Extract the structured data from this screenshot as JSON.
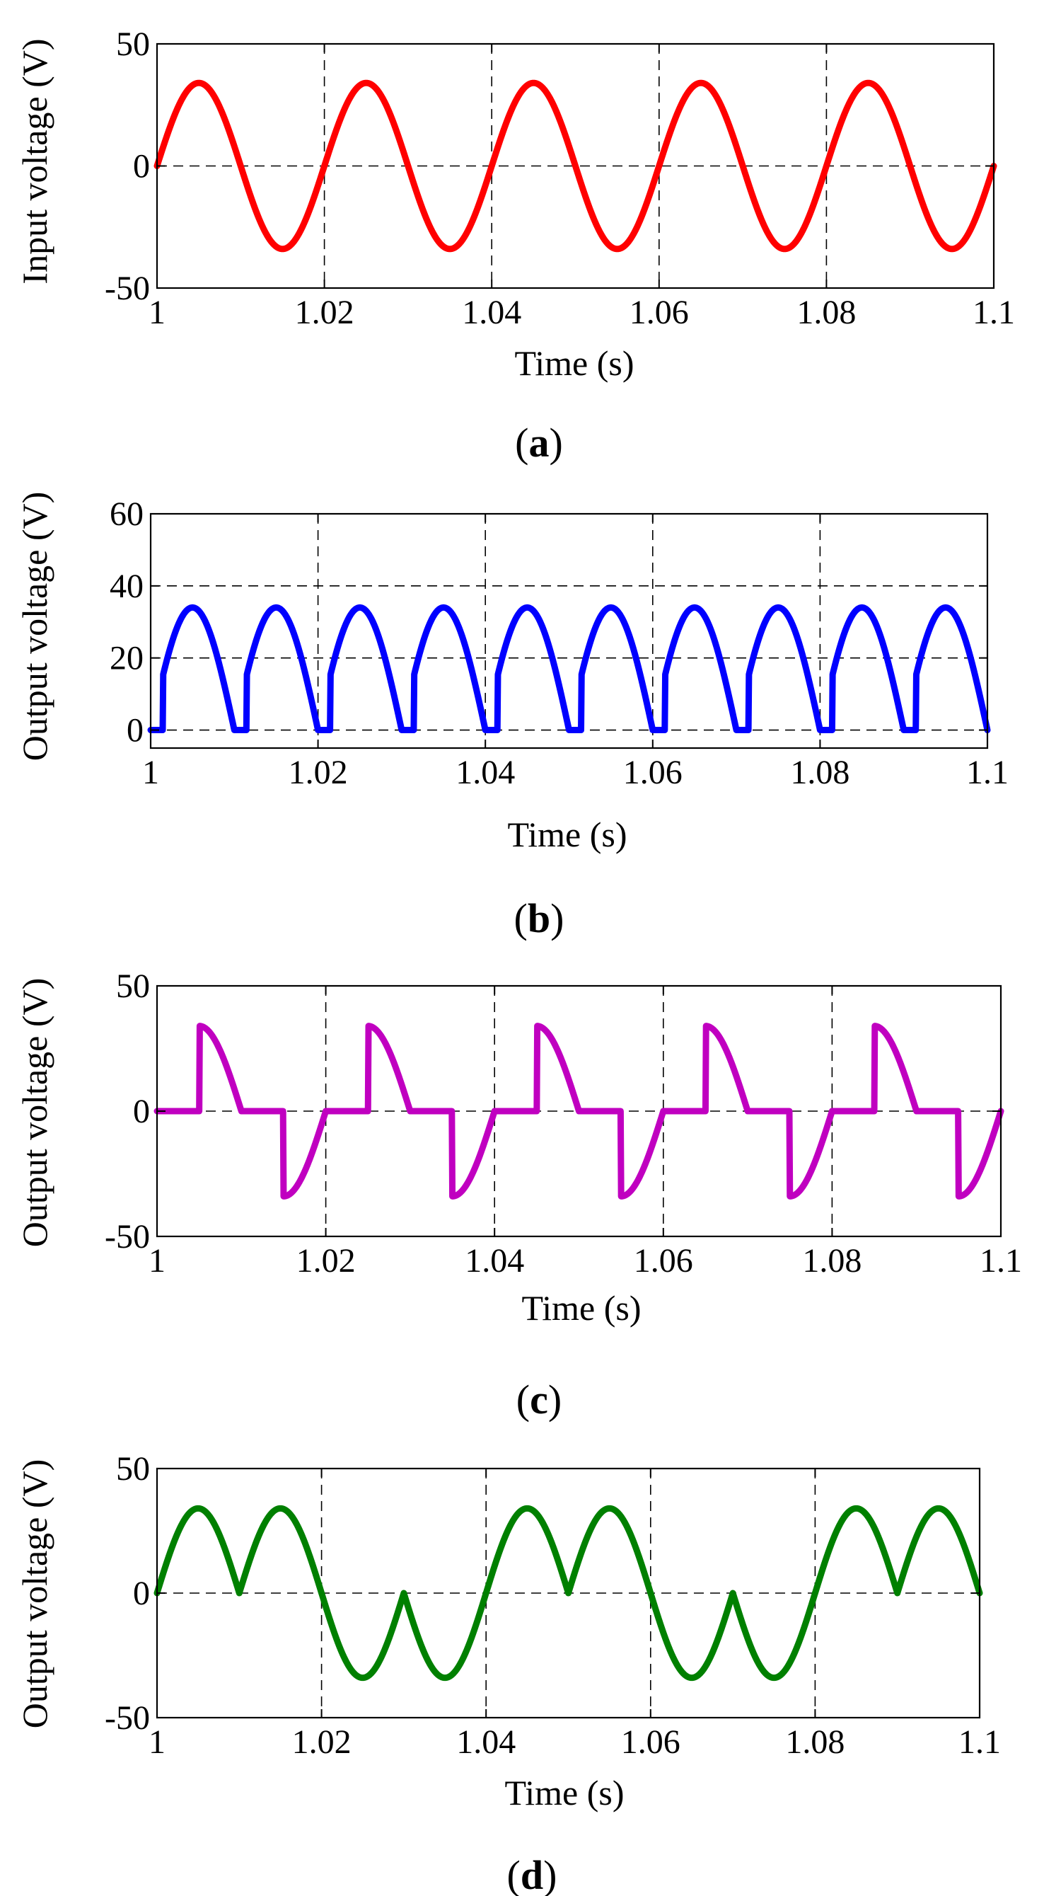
{
  "figure": {
    "panels": [
      {
        "caption_letter": "a",
        "x_label": "Time (s)",
        "y_label": "Input voltage (V)"
      },
      {
        "caption_letter": "b",
        "x_label": "Time (s)",
        "y_label": "Output voltage (V)"
      },
      {
        "caption_letter": "c",
        "x_label": "Time (s)",
        "y_label": "Output voltage (V)"
      },
      {
        "caption_letter": "d",
        "x_label": "Time (s)",
        "y_label": "Output voltage (V)"
      }
    ],
    "caption_open": "(",
    "caption_close": ")"
  },
  "chart_data": [
    {
      "id": "a",
      "type": "line",
      "title": "",
      "xlabel": "Time (s)",
      "ylabel": "Input voltage (V)",
      "xlim": [
        1,
        1.1
      ],
      "ylim": [
        -50,
        50
      ],
      "xticks": [
        1,
        1.02,
        1.04,
        1.06,
        1.08,
        1.1
      ],
      "xtick_labels": [
        "1",
        "1.02",
        "1.04",
        "1.06",
        "1.08",
        "1.1"
      ],
      "yticks": [
        -50,
        0,
        50
      ],
      "ytick_labels": [
        "-50",
        "0",
        "50"
      ],
      "grid": true,
      "series": [
        {
          "name": "Input voltage",
          "color": "#ff0000",
          "waveform": "sine",
          "amplitude": 34,
          "frequency_hz": 50,
          "x": [
            1,
            1.005,
            1.01,
            1.015,
            1.02,
            1.025,
            1.03,
            1.035,
            1.04,
            1.045,
            1.05,
            1.055,
            1.06,
            1.065,
            1.07,
            1.075,
            1.08,
            1.085,
            1.09,
            1.095,
            1.1
          ],
          "y": [
            0,
            34,
            0,
            -34,
            0,
            34,
            0,
            -34,
            0,
            34,
            0,
            -34,
            0,
            34,
            0,
            -34,
            0,
            34,
            0,
            -34,
            0
          ]
        }
      ]
    },
    {
      "id": "b",
      "type": "line",
      "title": "",
      "xlabel": "Time (s)",
      "ylabel": "Output voltage (V)",
      "xlim": [
        1,
        1.1
      ],
      "ylim": [
        -5,
        60
      ],
      "xticks": [
        1,
        1.02,
        1.04,
        1.06,
        1.08,
        1.1
      ],
      "xtick_labels": [
        "1",
        "1.02",
        "1.04",
        "1.06",
        "1.08",
        "1.1"
      ],
      "yticks": [
        0,
        20,
        40,
        60
      ],
      "ytick_labels": [
        "0",
        "20",
        "40",
        "60"
      ],
      "grid": true,
      "series": [
        {
          "name": "Output voltage",
          "color": "#0000ff",
          "waveform": "phase-controlled full-wave rectified",
          "amplitude": 34,
          "frequency_hz": 50,
          "firing_delay_s": 0.0015,
          "x": [
            1,
            1.0015,
            1.005,
            1.01,
            1.0115,
            1.015,
            1.02,
            1.0215,
            1.025,
            1.03
          ],
          "y": [
            0,
            16,
            34,
            0,
            16,
            34,
            0,
            16,
            34,
            0
          ]
        }
      ]
    },
    {
      "id": "c",
      "type": "line",
      "title": "",
      "xlabel": "Time (s)",
      "ylabel": "Output voltage (V)",
      "xlim": [
        1,
        1.1
      ],
      "ylim": [
        -50,
        50
      ],
      "xticks": [
        1,
        1.02,
        1.04,
        1.06,
        1.08,
        1.1
      ],
      "xtick_labels": [
        "1",
        "1.02",
        "1.04",
        "1.06",
        "1.08",
        "1.1"
      ],
      "yticks": [
        -50,
        0,
        50
      ],
      "ytick_labels": [
        "-50",
        "0",
        "50"
      ],
      "grid": true,
      "series": [
        {
          "name": "Output voltage",
          "color": "#c000c0",
          "waveform": "phase-controlled AC (fired at peak)",
          "amplitude": 34,
          "frequency_hz": 50,
          "firing_delay_s": 0.005,
          "x": [
            1,
            1.005,
            1.0052,
            1.01,
            1.015,
            1.0152,
            1.02,
            1.025,
            1.0252,
            1.03
          ],
          "y": [
            0,
            0,
            34,
            0,
            0,
            -34,
            0,
            0,
            34,
            0
          ]
        }
      ]
    },
    {
      "id": "d",
      "type": "line",
      "title": "",
      "xlabel": "Time (s)",
      "ylabel": "Output voltage (V)",
      "xlim": [
        1,
        1.1
      ],
      "ylim": [
        -50,
        50
      ],
      "xticks": [
        1,
        1.02,
        1.04,
        1.06,
        1.08,
        1.1
      ],
      "xtick_labels": [
        "1",
        "1.02",
        "1.04",
        "1.06",
        "1.08",
        "1.1"
      ],
      "yticks": [
        -50,
        0,
        50
      ],
      "ytick_labels": [
        "-50",
        "0",
        "50"
      ],
      "grid": true,
      "series": [
        {
          "name": "Output voltage",
          "color": "#008000",
          "waveform": "rectified, polarity alternating every 0.02 s",
          "amplitude": 34,
          "frequency_hz": 50,
          "x": [
            1,
            1.005,
            1.01,
            1.015,
            1.02,
            1.025,
            1.03,
            1.035,
            1.04,
            1.045,
            1.05,
            1.055,
            1.06,
            1.065,
            1.07,
            1.075,
            1.08,
            1.085,
            1.09,
            1.095,
            1.1
          ],
          "y": [
            0,
            34,
            0,
            34,
            0,
            -34,
            0,
            -34,
            0,
            34,
            0,
            34,
            0,
            -34,
            0,
            -34,
            0,
            34,
            0,
            34,
            0
          ]
        }
      ]
    }
  ]
}
